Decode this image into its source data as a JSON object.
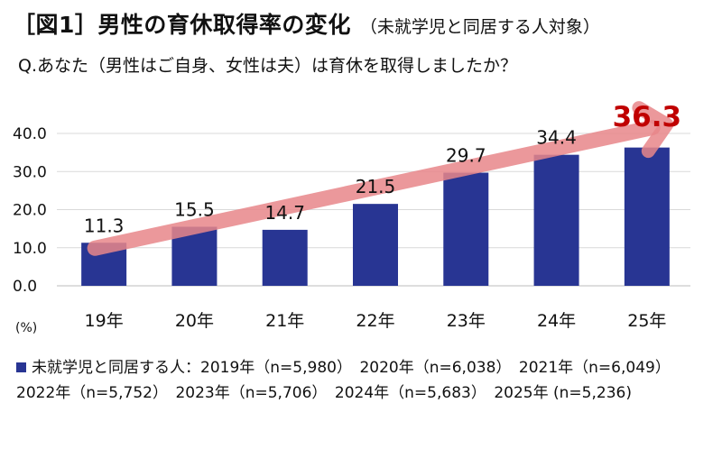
{
  "header": {
    "title": "［図1］男性の育休取得率の変化",
    "subtitle": "（未就学児と同居する人対象）"
  },
  "question": "Q.あなた（男性はご自身、女性は夫）は育休を取得しましたか？",
  "chart_data": {
    "type": "bar",
    "categories": [
      "19年",
      "20年",
      "21年",
      "22年",
      "23年",
      "24年",
      "25年"
    ],
    "values": [
      11.3,
      15.5,
      14.7,
      21.5,
      29.7,
      34.4,
      36.3
    ],
    "value_labels": [
      "11.3",
      "15.5",
      "14.7",
      "21.5",
      "29.7",
      "34.4",
      "36.3"
    ],
    "ylim": [
      0,
      40
    ],
    "yticks": [
      "0.0",
      "10.0",
      "20.0",
      "30.0",
      "40.0"
    ],
    "unit_label": "(%)",
    "grid": true,
    "bar_color": "#283593",
    "highlight_color": "#c00000",
    "trend_arrow_color": "#e8868a"
  },
  "legend": {
    "text": "未就学児と同居する人：2019年（n=5,980）　2020年（n=6,038）　2021年（n=6,049）　2022年（n=5,752）　2023年（n=5,706）　2024年（n=5,683）　2025年 (n=5,236)"
  }
}
